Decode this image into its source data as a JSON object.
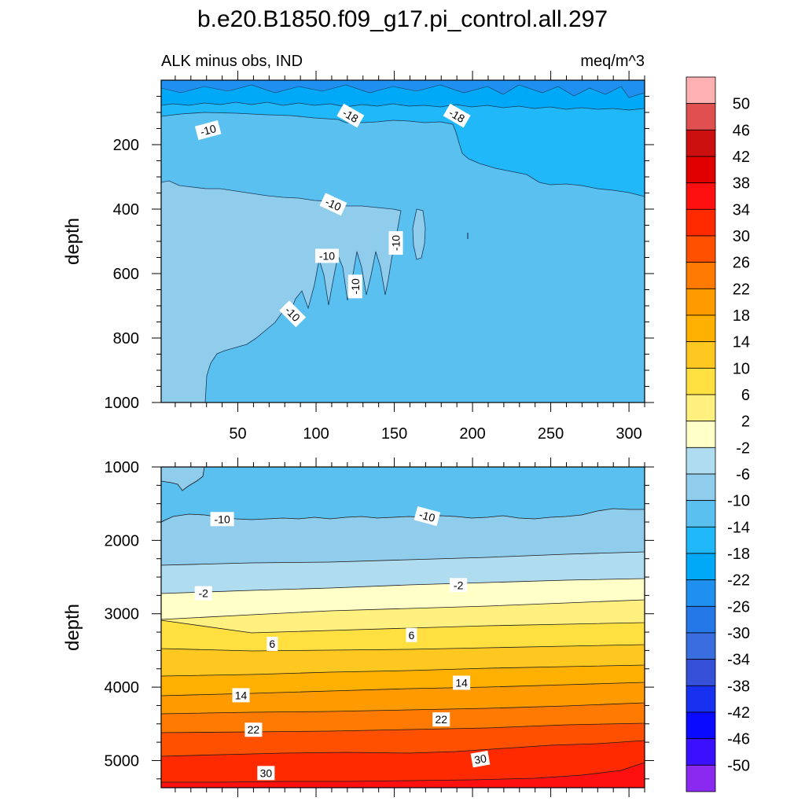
{
  "chart_data": {
    "type": "contour",
    "title": "b.e20.B1850.f09_g17.pi_control.all.297",
    "subtitle_left": "ALK minus obs, IND",
    "subtitle_right": "meq/m^3",
    "colorbar": {
      "levels": [
        "50",
        "46",
        "42",
        "38",
        "34",
        "30",
        "26",
        "22",
        "18",
        "14",
        "10",
        "6",
        "2",
        "-2",
        "-6",
        "-10",
        "-14",
        "-18",
        "-22",
        "-26",
        "-30",
        "-34",
        "-38",
        "-42",
        "-46",
        "-50"
      ],
      "colors": [
        "#ffb0b0",
        "#e05050",
        "#cc1010",
        "#e00000",
        "#ff1010",
        "#ff2a00",
        "#ff5000",
        "#ff7a00",
        "#ff9a00",
        "#ffb000",
        "#ffc820",
        "#ffe040",
        "#fff080",
        "#ffffc8",
        "#b0dcf0",
        "#90ccec",
        "#5ac0f0",
        "#20b8f8",
        "#00a8f8",
        "#2090f0",
        "#2478e8",
        "#3a6ee0",
        "#3650d8",
        "#1830f0",
        "#0a0aff",
        "#3a10ff",
        "#8a2af0"
      ]
    },
    "panels": [
      {
        "name": "upper",
        "ylabel": "depth",
        "y_ticks": [
          "200",
          "400",
          "600",
          "800",
          "1000"
        ],
        "y_tick_values": [
          200,
          400,
          600,
          800,
          1000
        ],
        "y_range": [
          0,
          1000
        ],
        "x_ticks": [
          "50",
          "100",
          "150",
          "200",
          "250",
          "300"
        ],
        "x_tick_values": [
          50,
          100,
          150,
          200,
          250,
          300
        ],
        "x_range": [
          1,
          310
        ],
        "contour_labels": [
          {
            "text": "-18",
            "x": 122,
            "y": 110,
            "rot": 30
          },
          {
            "text": "-18",
            "x": 190,
            "y": 110,
            "rot": 30
          },
          {
            "text": "-10",
            "x": 31,
            "y": 155,
            "rot": -15
          },
          {
            "text": "-10",
            "x": 111,
            "y": 385,
            "rot": 25
          },
          {
            "text": "-10",
            "x": 151,
            "y": 505,
            "rot": -90
          },
          {
            "text": "-10",
            "x": 107,
            "y": 545,
            "rot": 0
          },
          {
            "text": "-10",
            "x": 125,
            "y": 640,
            "rot": -90
          },
          {
            "text": "-10",
            "x": 85,
            "y": 725,
            "rot": 45
          }
        ]
      },
      {
        "name": "lower",
        "ylabel": "depth",
        "y_ticks": [
          "1000",
          "2000",
          "3000",
          "4000",
          "5000"
        ],
        "y_tick_values": [
          1000,
          2000,
          3000,
          4000,
          5000
        ],
        "y_range": [
          1000,
          5370
        ],
        "x_ticks": [],
        "x_tick_values": [
          50,
          100,
          150,
          200,
          250,
          300
        ],
        "x_range": [
          1,
          310
        ],
        "contour_labels": [
          {
            "text": "-10",
            "x": 40,
            "y": 1710,
            "rot": 0
          },
          {
            "text": "-10",
            "x": 171,
            "y": 1670,
            "rot": 15
          },
          {
            "text": "-2",
            "x": 28,
            "y": 2720,
            "rot": 0
          },
          {
            "text": "-2",
            "x": 191,
            "y": 2610,
            "rot": 0
          },
          {
            "text": "6",
            "x": 72,
            "y": 3410,
            "rot": 0
          },
          {
            "text": "6",
            "x": 161,
            "y": 3290,
            "rot": 0
          },
          {
            "text": "14",
            "x": 52,
            "y": 4110,
            "rot": 0
          },
          {
            "text": "14",
            "x": 193,
            "y": 3940,
            "rot": 0
          },
          {
            "text": "22",
            "x": 60,
            "y": 4580,
            "rot": 0
          },
          {
            "text": "22",
            "x": 180,
            "y": 4440,
            "rot": 0
          },
          {
            "text": "30",
            "x": 68,
            "y": 5170,
            "rot": 0
          },
          {
            "text": "30",
            "x": 205,
            "y": 4980,
            "rot": -10
          }
        ]
      }
    ]
  }
}
